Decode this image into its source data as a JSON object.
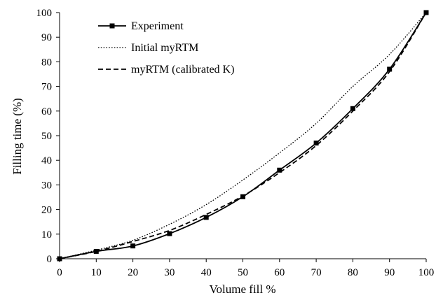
{
  "chart_data": {
    "type": "line",
    "title": "",
    "xlabel": "Volume fill %",
    "ylabel": "Filling time (%)",
    "xlim": [
      0,
      100
    ],
    "ylim": [
      0,
      100
    ],
    "x_ticks": [
      "0",
      "10",
      "20",
      "30",
      "40",
      "50",
      "60",
      "70",
      "80",
      "90",
      "100"
    ],
    "y_ticks": [
      "0",
      "10",
      "20",
      "30",
      "40",
      "50",
      "60",
      "70",
      "80",
      "90",
      "100"
    ],
    "grid": false,
    "legend_position": "top-left",
    "series": [
      {
        "name": "Experiment",
        "style": "solid-with-square-markers",
        "color": "#000000",
        "x": [
          0,
          10,
          20,
          30,
          40,
          50,
          60,
          70,
          80,
          90,
          100
        ],
        "y": [
          0,
          3,
          5.2,
          10.2,
          16.8,
          25.2,
          36,
          47,
          61,
          77,
          100
        ]
      },
      {
        "name": "Initial myRTM",
        "style": "dotted",
        "color": "#000000",
        "x": [
          0,
          10,
          20,
          30,
          40,
          50,
          60,
          70,
          80,
          90,
          100
        ],
        "y": [
          0,
          3.5,
          7.5,
          14,
          22,
          32,
          43,
          55,
          70,
          83,
          100
        ]
      },
      {
        "name": "myRTM (calibrated K)",
        "style": "dashed",
        "color": "#000000",
        "x": [
          0,
          10,
          20,
          30,
          40,
          50,
          60,
          70,
          80,
          90,
          100
        ],
        "y": [
          0,
          3,
          7,
          11.5,
          18,
          25.5,
          35,
          46,
          60,
          76,
          100
        ]
      }
    ]
  }
}
